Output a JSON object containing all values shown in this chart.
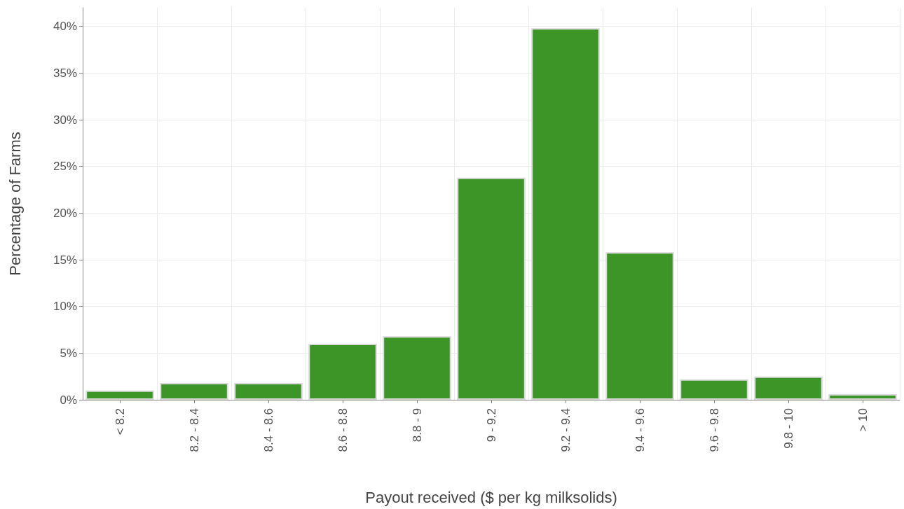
{
  "chart_data": {
    "type": "bar",
    "xlabel": "Payout received ($ per kg milksolids)",
    "ylabel": "Percentage of Farms",
    "categories": [
      "< 8.2",
      "8.2 - 8.4",
      "8.4 - 8.6",
      "8.6 - 8.8",
      "8.8 - 9",
      "9 - 9.2",
      "9.2 - 9.4",
      "9.4 - 9.6",
      "9.6 - 9.8",
      "9.8 - 10",
      "> 10"
    ],
    "values": [
      1.0,
      1.8,
      1.8,
      6.0,
      6.8,
      23.8,
      39.8,
      15.8,
      2.2,
      2.5,
      0.6
    ],
    "color": "#3d9427",
    "ylim": [
      0,
      42
    ],
    "yticks": [
      {
        "value": 0,
        "label": "0%"
      },
      {
        "value": 5,
        "label": "5%"
      },
      {
        "value": 10,
        "label": "10%"
      },
      {
        "value": 15,
        "label": "15%"
      },
      {
        "value": 20,
        "label": "20%"
      },
      {
        "value": 25,
        "label": "25%"
      },
      {
        "value": 30,
        "label": "30%"
      },
      {
        "value": 35,
        "label": "35%"
      },
      {
        "value": 40,
        "label": "40%"
      }
    ],
    "grid": true
  }
}
